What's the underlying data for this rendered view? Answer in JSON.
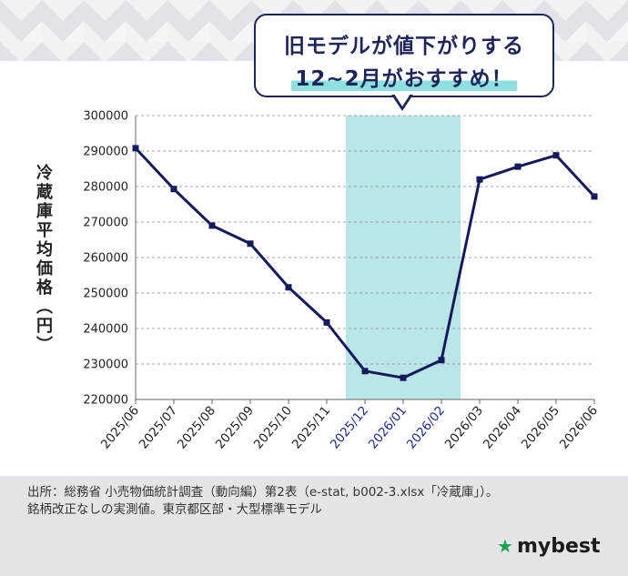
{
  "callout": {
    "line1": "旧モデルが値下がりする",
    "line2": "12~2月がおすすめ！"
  },
  "source": {
    "line1": "出所：総務省 小売物価統計調査（動向編）第2表（e-stat, b002-3.xlsx「冷蔵庫」）。",
    "line2": "銘柄改正なしの実測値。東京都区部・大型標準モデル"
  },
  "logo": {
    "text": "mybest",
    "icon": "star-icon"
  },
  "colors": {
    "line": "#151a5c",
    "highlight": "#b9e6e6",
    "highlight_label": "#1f2a8a",
    "label": "#222222",
    "grid": "#888888"
  },
  "chart_data": {
    "type": "line",
    "ylabel": "冷蔵庫平均価格（円）",
    "xlabel": "",
    "ylim": [
      220000,
      300000
    ],
    "yticks": [
      300000,
      290000,
      280000,
      270000,
      260000,
      250000,
      240000,
      230000,
      220000
    ],
    "ytick_labels": [
      "300000",
      "290000",
      "280000",
      "270000",
      "260000",
      "250000",
      "240000",
      "230000",
      "220000"
    ],
    "grid": "horizontal dashed",
    "categories": [
      "2025/06",
      "2025/07",
      "2025/08",
      "2025/09",
      "2025/10",
      "2025/11",
      "2025/12",
      "2026/01",
      "2026/02",
      "2026/03",
      "2026/04",
      "2026/05",
      "2026/06"
    ],
    "values": [
      290800,
      279300,
      269000,
      263900,
      251600,
      241700,
      228000,
      226100,
      231100,
      282000,
      285600,
      288800,
      277200
    ],
    "highlight_categories": [
      "2025/12",
      "2026/01",
      "2026/02"
    ]
  }
}
